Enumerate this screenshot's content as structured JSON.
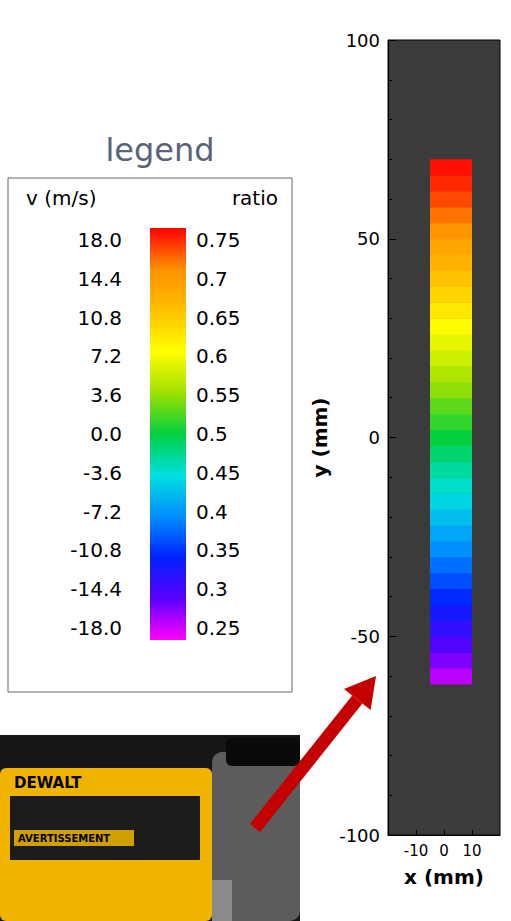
{
  "chart_data": {
    "type": "heatmap",
    "xlabel": "x (mm)",
    "ylabel": "y (mm)",
    "xlim": [
      -20,
      20
    ],
    "xticks": [
      -10,
      0,
      10
    ],
    "ylim": [
      -100,
      100
    ],
    "yticks": [
      -100,
      -50,
      0,
      50,
      100
    ],
    "grid": false,
    "cells": {
      "x_edges": [
        -5,
        10
      ],
      "y_edges": [
        -62,
        -58,
        -54,
        -50,
        -46,
        -42,
        -38,
        -34,
        -30,
        -26,
        -22,
        -18,
        -14,
        -10,
        -6,
        -2,
        2,
        6,
        10,
        14,
        18,
        22,
        26,
        30,
        34,
        38,
        42,
        46,
        50,
        54,
        58,
        62,
        66,
        70
      ],
      "values": [
        -16.5,
        -15.2,
        -14.0,
        -12.8,
        -11.7,
        -10.5,
        -9.4,
        -8.3,
        -7.2,
        -6.2,
        -5.1,
        -4.1,
        -3.1,
        -2.1,
        -1.0,
        0.1,
        1.1,
        2.1,
        3.2,
        4.2,
        5.3,
        6.3,
        7.4,
        8.5,
        9.6,
        10.7,
        11.8,
        12.9,
        14.0,
        15.1,
        16.2,
        17.0,
        17.6
      ]
    },
    "colorbar": {
      "title": "legend",
      "label": "v (m/s)",
      "label2": "ratio",
      "range": [
        -18,
        18
      ],
      "ticks": [
        {
          "value": 18,
          "label": "18.0"
        },
        14.4,
        10.8,
        7.2,
        3.6,
        {
          "value": 0,
          "label": "0.0"
        },
        -3.6,
        -7.2,
        -10.8,
        -14.4,
        {
          "value": -18,
          "label": "-18.0"
        }
      ],
      "range2": [
        0.25,
        0.75
      ],
      "ticks2": [
        0.75,
        0.7,
        0.65,
        0.6,
        0.55,
        0.5,
        0.45,
        0.4,
        0.35,
        0.3,
        0.25
      ]
    }
  },
  "photo": {
    "texts": [
      "DEWALT",
      "AVERTISSEMENT"
    ]
  }
}
